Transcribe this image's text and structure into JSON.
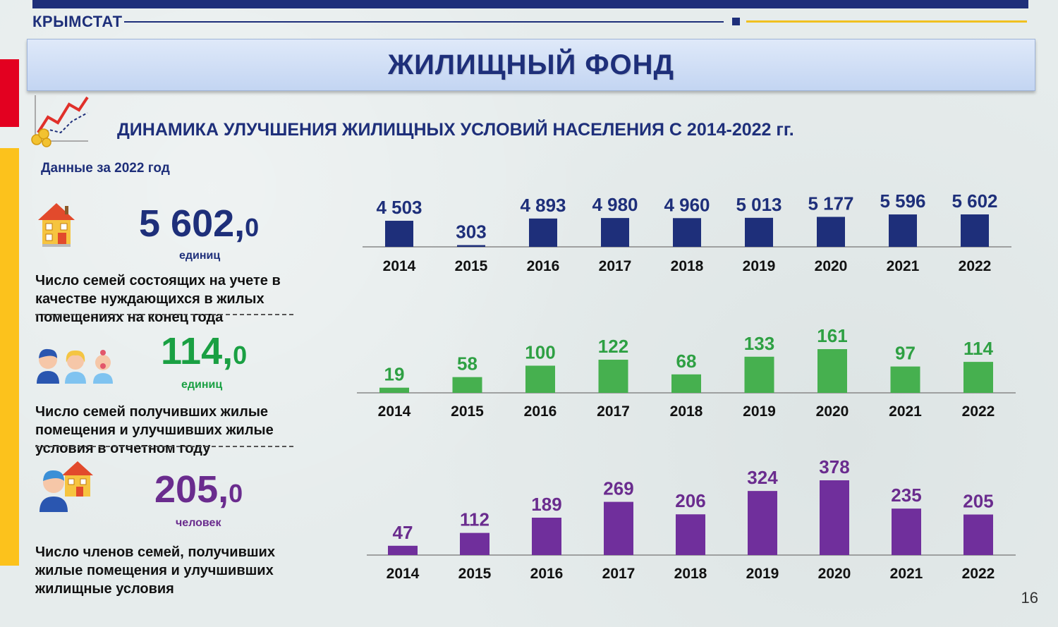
{
  "header": {
    "brand": "КРЫМСТАТ",
    "title": "ЖИЛИЩНЫЙ ФОНД",
    "page_number": "16"
  },
  "subtitle": "ДИНАМИКА  УЛУЧШЕНИЯ ЖИЛИЩНЫХ УСЛОВИЙ НАСЕЛЕНИЯ С 2014-2022 гг.",
  "data_year_label": "Данные за 2022 год",
  "indicators": [
    {
      "value_main": "5 602,",
      "value_decimal": "0",
      "unit": "единиц",
      "description": [
        "Число семей состоящих на учете в",
        "качестве нуждающихся в жилых",
        "помещениях на конец года"
      ],
      "color": "#1e2f7a"
    },
    {
      "value_main": "114,",
      "value_decimal": "0",
      "unit": "единиц",
      "description": [
        "Число семей получивших жилые",
        "помещения и улучшивших жилые",
        "условия в отчетном году"
      ],
      "color": "#1aa043"
    },
    {
      "value_main": "205,",
      "value_decimal": "0",
      "unit": "человек",
      "description": [
        "Число членов семей, получивших",
        "жилые помещения и улучшивших",
        "жилищные условия"
      ],
      "color": "#6a2c8e"
    }
  ],
  "chart_data": [
    {
      "type": "bar",
      "categories": [
        "2014",
        "2015",
        "2016",
        "2017",
        "2018",
        "2019",
        "2020",
        "2021",
        "2022"
      ],
      "values": [
        4503,
        303,
        4893,
        4980,
        4960,
        5013,
        5177,
        5596,
        5602
      ],
      "value_labels": [
        "4 503",
        "303",
        "4 893",
        "4 980",
        "4 960",
        "5 013",
        "5 177",
        "5 596",
        "5 602"
      ],
      "color": "#1e2f7a",
      "label_color": "#1e2f7a"
    },
    {
      "type": "bar",
      "categories": [
        "2014",
        "2015",
        "2016",
        "2017",
        "2018",
        "2019",
        "2020",
        "2021",
        "2022"
      ],
      "values": [
        19,
        58,
        100,
        122,
        68,
        133,
        161,
        97,
        114
      ],
      "value_labels": [
        "19",
        "58",
        "100",
        "122",
        "68",
        "133",
        "161",
        "97",
        "114"
      ],
      "color": "#46b04f",
      "label_color": "#2ea043"
    },
    {
      "type": "bar",
      "categories": [
        "2014",
        "2015",
        "2016",
        "2017",
        "2018",
        "2019",
        "2020",
        "2021",
        "2022"
      ],
      "values": [
        47,
        112,
        189,
        269,
        206,
        324,
        378,
        235,
        205
      ],
      "value_labels": [
        "47",
        "112",
        "189",
        "269",
        "206",
        "324",
        "378",
        "235",
        "205"
      ],
      "color": "#702f9c",
      "label_color": "#6a2c8e"
    }
  ]
}
